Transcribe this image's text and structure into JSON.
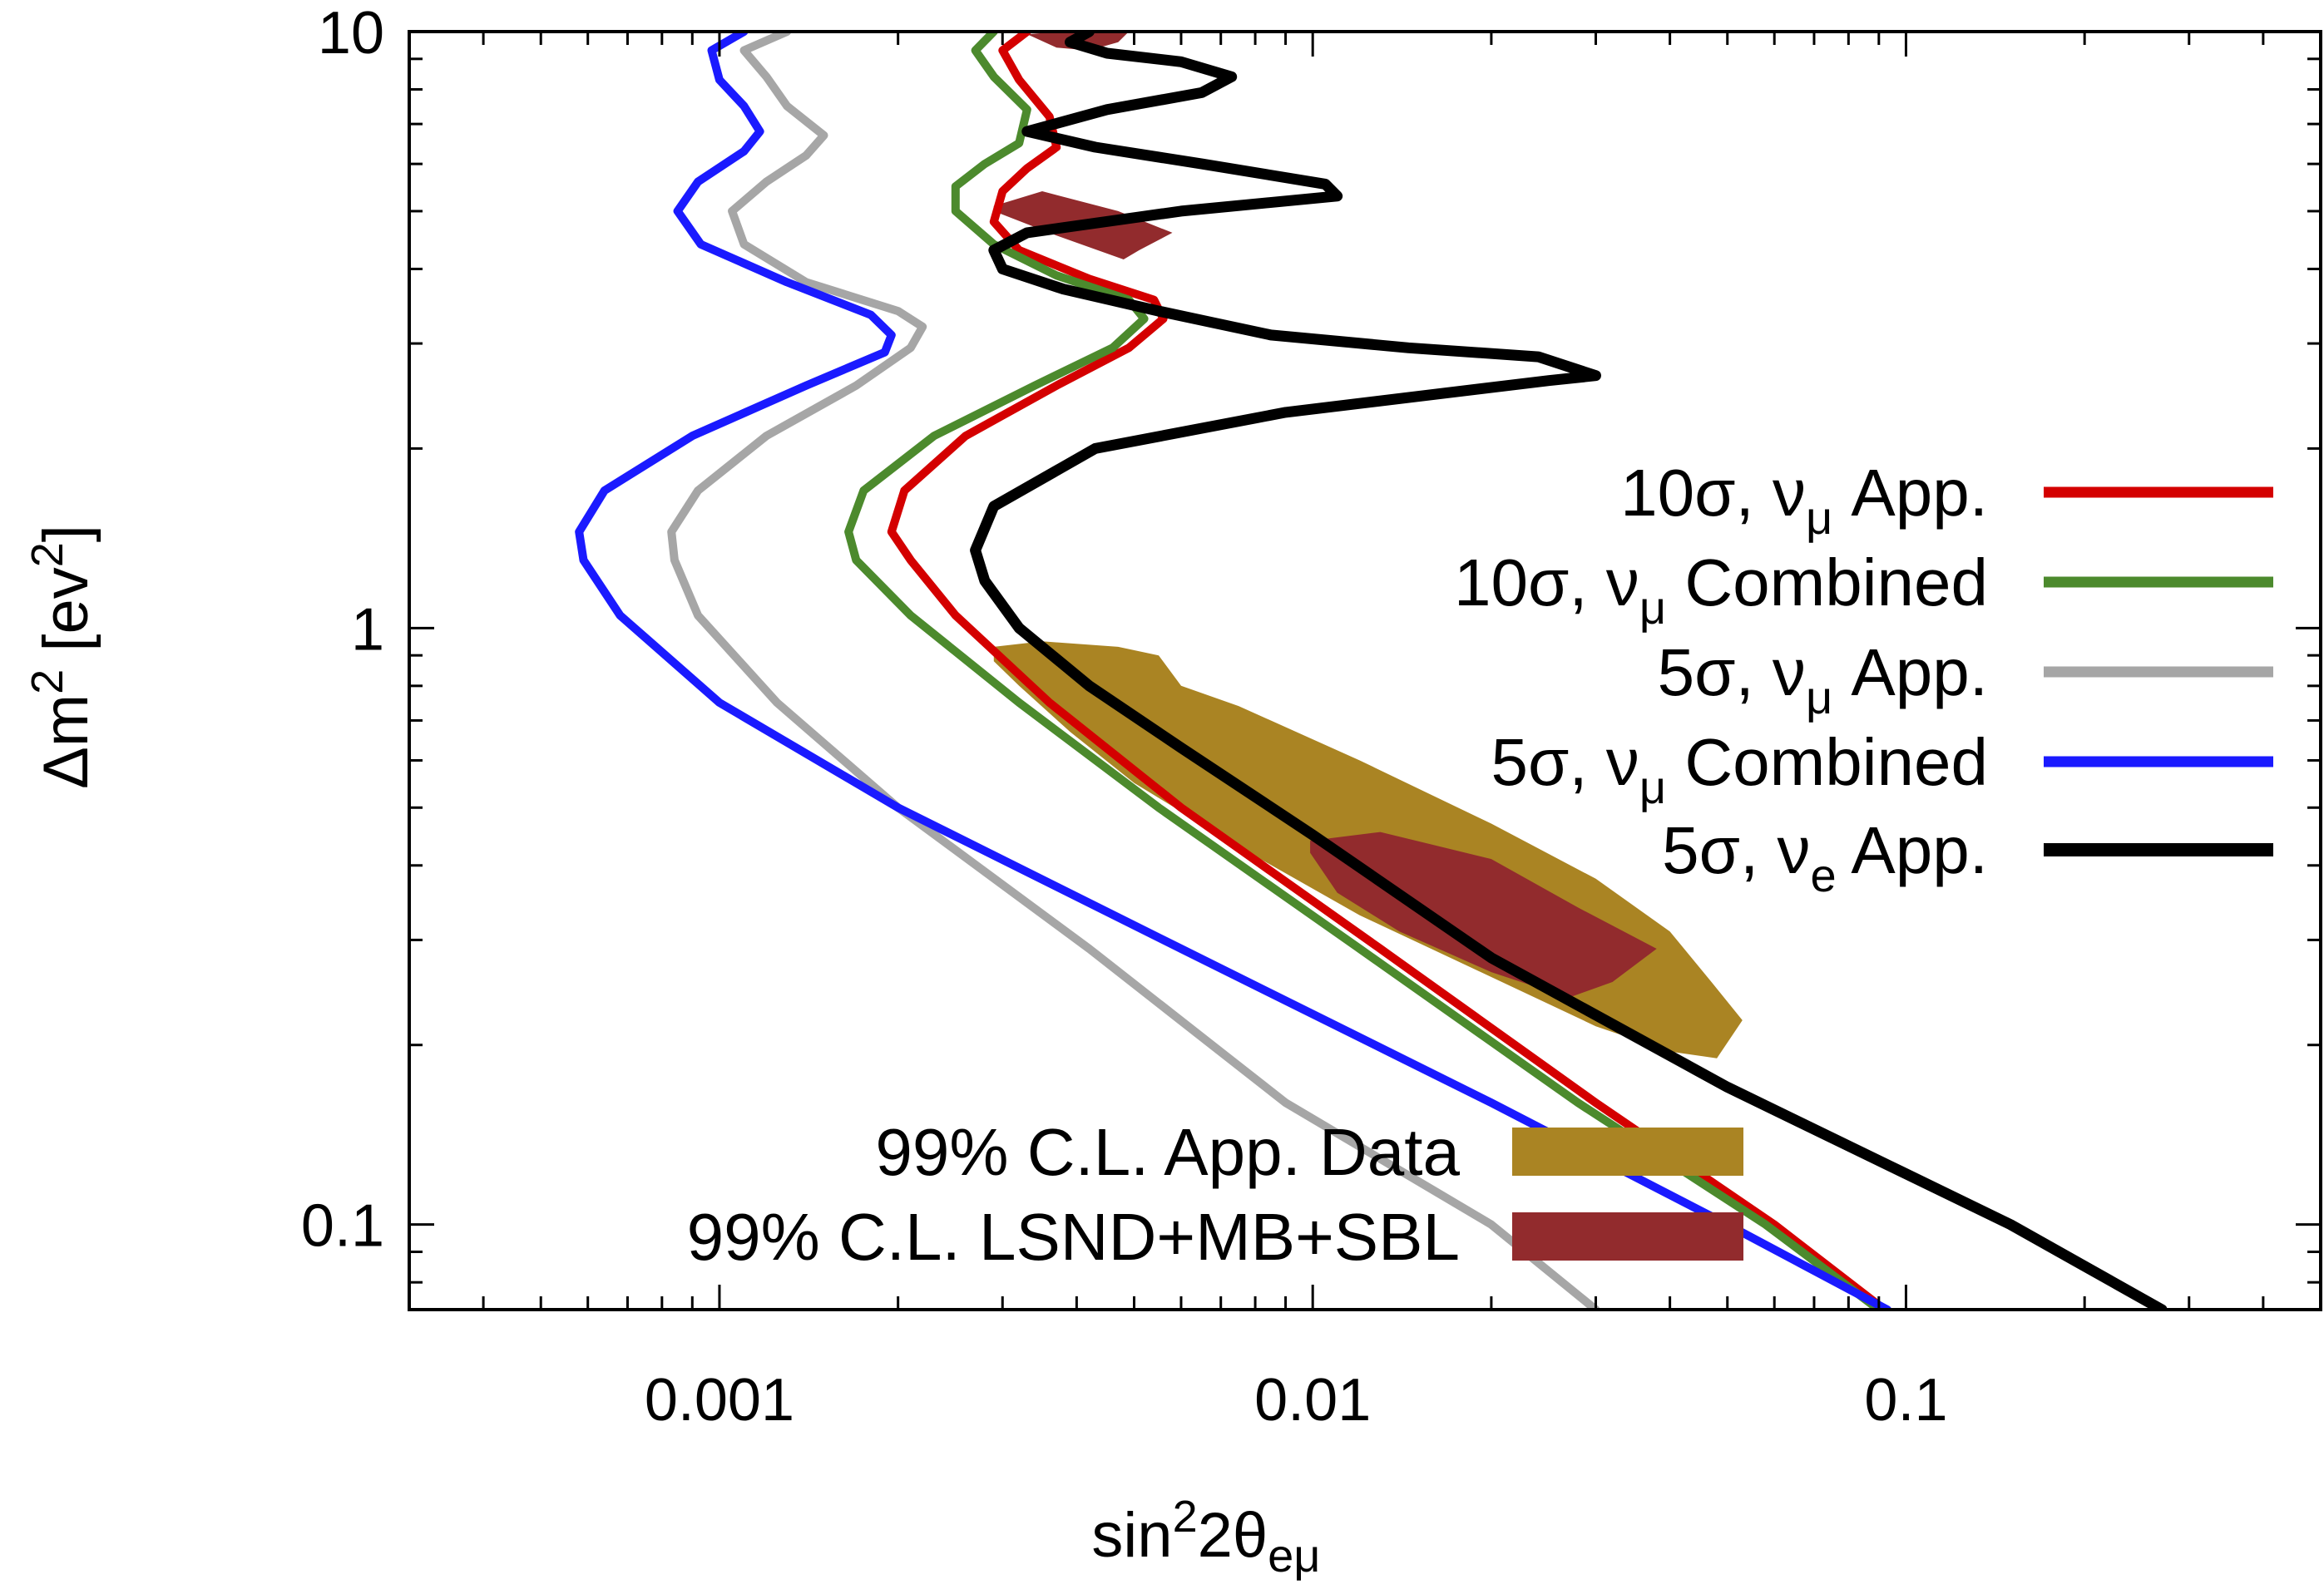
{
  "chart_data": {
    "type": "line",
    "xscale": "log",
    "yscale": "log",
    "xlim": [
      0.0003,
      0.5
    ],
    "ylim": [
      0.072,
      10
    ],
    "x_ticks": [
      {
        "value": 0.001,
        "label": "0.001"
      },
      {
        "value": 0.01,
        "label": "0.01"
      },
      {
        "value": 0.1,
        "label": "0.1"
      }
    ],
    "y_ticks": [
      {
        "value": 0.1,
        "label": "0.1"
      },
      {
        "value": 1,
        "label": "1"
      },
      {
        "value": 10,
        "label": "10"
      }
    ],
    "xlabel": {
      "base": "sin",
      "sup": "2",
      "mid": "2θ",
      "sub": "eμ"
    },
    "ylabel": {
      "base": "Δm",
      "sup": "2",
      "mid": " [ev",
      "sup2": "2",
      "end": "]"
    },
    "grid": false,
    "legend_position": "right",
    "series": [
      {
        "name": {
          "prefix": "10σ, ν",
          "sub": "μ",
          "suffix": " App."
        },
        "color": "#d40000",
        "points": [
          [
            0.092,
            0.072
          ],
          [
            0.06,
            0.1
          ],
          [
            0.03,
            0.16
          ],
          [
            0.013,
            0.29
          ],
          [
            0.006,
            0.5
          ],
          [
            0.0036,
            0.75
          ],
          [
            0.0025,
            1.05
          ],
          [
            0.0021,
            1.3
          ],
          [
            0.00195,
            1.45
          ],
          [
            0.00205,
            1.7
          ],
          [
            0.0026,
            2.1
          ],
          [
            0.0037,
            2.55
          ],
          [
            0.0049,
            2.95
          ],
          [
            0.0056,
            3.3
          ],
          [
            0.0054,
            3.55
          ],
          [
            0.0042,
            3.85
          ],
          [
            0.0032,
            4.3
          ],
          [
            0.0029,
            4.8
          ],
          [
            0.003,
            5.4
          ],
          [
            0.0033,
            5.9
          ],
          [
            0.0037,
            6.4
          ],
          [
            0.0036,
            7.2
          ],
          [
            0.0032,
            8.3
          ],
          [
            0.003,
            9.3
          ],
          [
            0.0033,
            10
          ]
        ]
      },
      {
        "name": {
          "prefix": "10σ, ν",
          "sub": "μ",
          "suffix": " Combined"
        },
        "color": "#4c8a2d",
        "points": [
          [
            0.09,
            0.072
          ],
          [
            0.058,
            0.1
          ],
          [
            0.028,
            0.16
          ],
          [
            0.012,
            0.29
          ],
          [
            0.0055,
            0.5
          ],
          [
            0.0032,
            0.75
          ],
          [
            0.0021,
            1.05
          ],
          [
            0.0017,
            1.3
          ],
          [
            0.00165,
            1.45
          ],
          [
            0.00175,
            1.7
          ],
          [
            0.0023,
            2.1
          ],
          [
            0.0034,
            2.55
          ],
          [
            0.0046,
            2.95
          ],
          [
            0.0052,
            3.3
          ],
          [
            0.0049,
            3.55
          ],
          [
            0.0037,
            3.9
          ],
          [
            0.0029,
            4.4
          ],
          [
            0.0025,
            5.0
          ],
          [
            0.0025,
            5.5
          ],
          [
            0.0028,
            6.0
          ],
          [
            0.0032,
            6.5
          ],
          [
            0.0033,
            7.4
          ],
          [
            0.0029,
            8.4
          ],
          [
            0.0027,
            9.3
          ],
          [
            0.0029,
            10
          ]
        ]
      },
      {
        "name": {
          "prefix": "5σ, ν",
          "sub": "μ",
          "suffix": " App."
        },
        "color": "#a6a6a6",
        "points": [
          [
            0.03,
            0.072
          ],
          [
            0.02,
            0.1
          ],
          [
            0.009,
            0.16
          ],
          [
            0.0042,
            0.29
          ],
          [
            0.002,
            0.5
          ],
          [
            0.00125,
            0.75
          ],
          [
            0.00092,
            1.05
          ],
          [
            0.00084,
            1.3
          ],
          [
            0.00083,
            1.45
          ],
          [
            0.00092,
            1.7
          ],
          [
            0.0012,
            2.1
          ],
          [
            0.0017,
            2.55
          ],
          [
            0.0021,
            2.95
          ],
          [
            0.0022,
            3.2
          ],
          [
            0.002,
            3.4
          ],
          [
            0.0014,
            3.8
          ],
          [
            0.0011,
            4.4
          ],
          [
            0.00105,
            5.0
          ],
          [
            0.0012,
            5.6
          ],
          [
            0.0014,
            6.2
          ],
          [
            0.0015,
            6.7
          ],
          [
            0.0013,
            7.5
          ],
          [
            0.0012,
            8.4
          ],
          [
            0.0011,
            9.3
          ],
          [
            0.0013,
            10
          ]
        ]
      },
      {
        "name": {
          "prefix": "5σ, ν",
          "sub": "μ",
          "suffix": " Combined"
        },
        "color": "#1a1aff",
        "points": [
          [
            0.093,
            0.072
          ],
          [
            0.05,
            0.1
          ],
          [
            0.02,
            0.16
          ],
          [
            0.006,
            0.29
          ],
          [
            0.002,
            0.5
          ],
          [
            0.001,
            0.75
          ],
          [
            0.00068,
            1.05
          ],
          [
            0.00059,
            1.3
          ],
          [
            0.00058,
            1.45
          ],
          [
            0.00064,
            1.7
          ],
          [
            0.0009,
            2.1
          ],
          [
            0.0014,
            2.55
          ],
          [
            0.0019,
            2.9
          ],
          [
            0.00195,
            3.1
          ],
          [
            0.0018,
            3.35
          ],
          [
            0.0013,
            3.8
          ],
          [
            0.00093,
            4.4
          ],
          [
            0.00085,
            5.0
          ],
          [
            0.00092,
            5.6
          ],
          [
            0.0011,
            6.3
          ],
          [
            0.00117,
            6.8
          ],
          [
            0.0011,
            7.5
          ],
          [
            0.001,
            8.3
          ],
          [
            0.00097,
            9.3
          ],
          [
            0.0011,
            10
          ]
        ]
      },
      {
        "name": {
          "prefix": "5σ, ν",
          "sub": "e",
          "suffix": " App."
        },
        "color": "#000000",
        "points": [
          [
            0.27,
            0.072
          ],
          [
            0.15,
            0.1
          ],
          [
            0.05,
            0.17
          ],
          [
            0.02,
            0.28
          ],
          [
            0.01,
            0.45
          ],
          [
            0.006,
            0.63
          ],
          [
            0.0042,
            0.8
          ],
          [
            0.0032,
            1.0
          ],
          [
            0.0028,
            1.2
          ],
          [
            0.0027,
            1.35
          ],
          [
            0.0029,
            1.6
          ],
          [
            0.0043,
            2.0
          ],
          [
            0.009,
            2.3
          ],
          [
            0.025,
            2.6
          ],
          [
            0.03,
            2.65
          ],
          [
            0.024,
            2.85
          ],
          [
            0.0145,
            2.95
          ],
          [
            0.0085,
            3.1
          ],
          [
            0.0055,
            3.4
          ],
          [
            0.0038,
            3.7
          ],
          [
            0.003,
            4.0
          ],
          [
            0.0029,
            4.3
          ],
          [
            0.0033,
            4.6
          ],
          [
            0.006,
            5.0
          ],
          [
            0.011,
            5.3
          ],
          [
            0.0105,
            5.55
          ],
          [
            0.0065,
            6.0
          ],
          [
            0.0043,
            6.4
          ],
          [
            0.0033,
            6.8
          ],
          [
            0.0045,
            7.4
          ],
          [
            0.0065,
            7.9
          ],
          [
            0.0073,
            8.4
          ],
          [
            0.006,
            8.9
          ],
          [
            0.0045,
            9.2
          ],
          [
            0.0039,
            9.6
          ],
          [
            0.0042,
            10
          ]
        ]
      }
    ],
    "regions": [
      {
        "name": "99% C.L. App. Data",
        "color": "#aa8423",
        "polygons": [
          [
            [
              0.0029,
              0.93
            ],
            [
              0.0035,
              0.95
            ],
            [
              0.0047,
              0.93
            ],
            [
              0.0055,
              0.9
            ],
            [
              0.006,
              0.8
            ],
            [
              0.0075,
              0.74
            ],
            [
              0.012,
              0.6
            ],
            [
              0.02,
              0.47
            ],
            [
              0.03,
              0.38
            ],
            [
              0.04,
              0.31
            ],
            [
              0.047,
              0.255
            ],
            [
              0.053,
              0.22
            ],
            [
              0.048,
              0.19
            ],
            [
              0.04,
              0.195
            ],
            [
              0.03,
              0.215
            ],
            [
              0.02,
              0.26
            ],
            [
              0.012,
              0.33
            ],
            [
              0.0075,
              0.43
            ],
            [
              0.005,
              0.55
            ],
            [
              0.0039,
              0.67
            ],
            [
              0.0032,
              0.8
            ],
            [
              0.0029,
              0.88
            ]
          ]
        ]
      },
      {
        "name": "99% C.L. LSND+MB+SBL",
        "color": "#922b2d",
        "polygons": [
          [
            [
              0.0099,
              0.44
            ],
            [
              0.013,
              0.455
            ],
            [
              0.02,
              0.41
            ],
            [
              0.028,
              0.34
            ],
            [
              0.038,
              0.29
            ],
            [
              0.032,
              0.255
            ],
            [
              0.027,
              0.24
            ],
            [
              0.02,
              0.265
            ],
            [
              0.014,
              0.31
            ],
            [
              0.011,
              0.36
            ],
            [
              0.0099,
              0.42
            ]
          ],
          [
            [
              0.0029,
              5.1
            ],
            [
              0.0035,
              5.4
            ],
            [
              0.0047,
              5.0
            ],
            [
              0.0058,
              4.6
            ],
            [
              0.0051,
              4.3
            ],
            [
              0.0048,
              4.15
            ],
            [
              0.0037,
              4.55
            ],
            [
              0.0029,
              5.0
            ]
          ],
          [
            [
              0.0033,
              9.9
            ],
            [
              0.0038,
              10
            ],
            [
              0.0049,
              10
            ],
            [
              0.0047,
              9.6
            ],
            [
              0.0042,
              9.3
            ],
            [
              0.0037,
              9.4
            ]
          ]
        ]
      }
    ]
  }
}
